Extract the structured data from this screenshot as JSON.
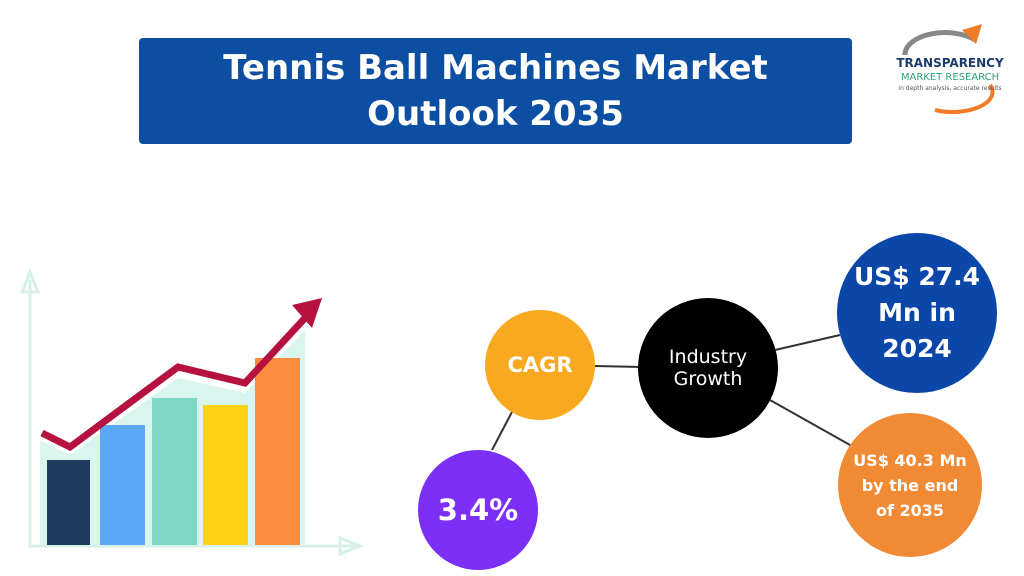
{
  "header": {
    "title": "Tennis Ball Machines Market Outlook 2035"
  },
  "logo": {
    "name": "TRANSPARENCY",
    "subname": "MARKET RESEARCH",
    "tagline": "in depth analysis, accurate results"
  },
  "nodes": [
    {
      "label": "CAGR"
    },
    {
      "label": "Industry Growth"
    },
    {
      "label": "US$ 27.4 Mn in 2024"
    },
    {
      "label": "US$ 40.3 Mn by the end of 2035"
    },
    {
      "label": "3.4%"
    }
  ]
}
